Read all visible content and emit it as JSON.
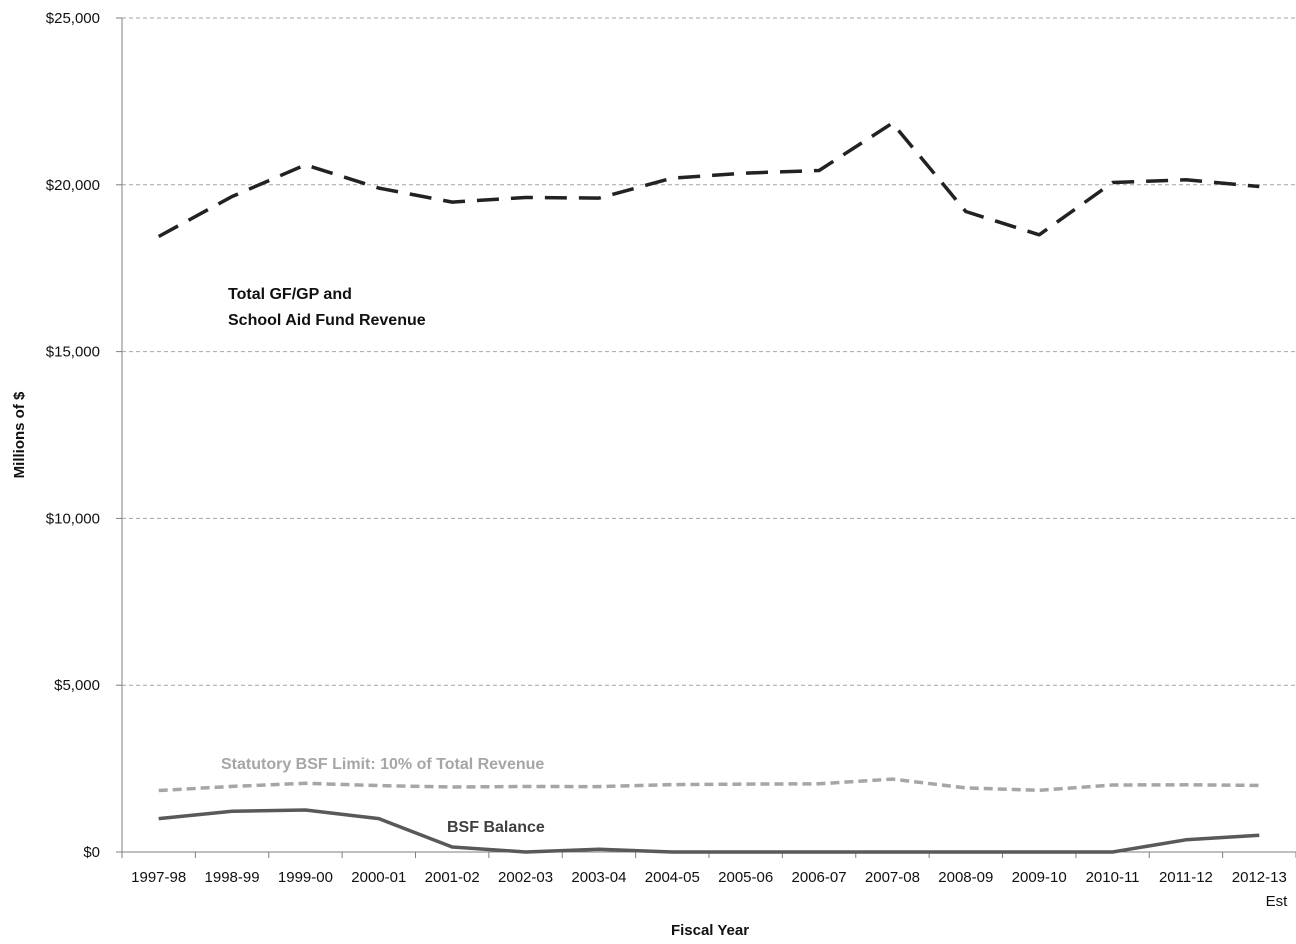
{
  "chart_data": {
    "type": "line",
    "title": "",
    "xlabel": "Fiscal Year",
    "ylabel": "Millions of $",
    "ylim": [
      0,
      25000
    ],
    "grid": true,
    "legend": "none",
    "y_ticks": [
      0,
      5000,
      10000,
      15000,
      20000,
      25000
    ],
    "y_tick_labels": [
      "$0",
      "$5,000",
      "$10,000",
      "$15,000",
      "$20,000",
      "$25,000"
    ],
    "categories": [
      "1997-98",
      "1998-99",
      "1999-00",
      "2000-01",
      "2001-02",
      "2002-03",
      "2003-04",
      "2004-05",
      "2005-06",
      "2006-07",
      "2007-08",
      "2008-09",
      "2009-10",
      "2010-11",
      "2011-12",
      "2012-13"
    ],
    "category_sublabels": [
      "",
      "",
      "",
      "",
      "",
      "",
      "",
      "",
      "",
      "",
      "",
      "",
      "",
      "",
      "",
      "Est"
    ],
    "series": [
      {
        "key": "revenue",
        "label_lines": [
          "Total GF/GP and",
          "School Aid Fund Revenue"
        ],
        "color": "#222222",
        "style": "long-dash",
        "values": [
          18450,
          19650,
          20600,
          19900,
          19480,
          19620,
          19600,
          20200,
          20350,
          20430,
          21850,
          19200,
          18500,
          20070,
          20150,
          19950
        ]
      },
      {
        "key": "limit",
        "label_lines": [
          "Statutory BSF Limit: 10% of Total Revenue"
        ],
        "color": "#a6a6a6",
        "style": "short-dash",
        "values": [
          1845,
          1965,
          2060,
          1990,
          1948,
          1962,
          1960,
          2020,
          2035,
          2043,
          2185,
          1920,
          1850,
          2007,
          2015,
          1995
        ]
      },
      {
        "key": "bsf",
        "label_lines": [
          "BSF Balance"
        ],
        "color": "#595959",
        "style": "solid",
        "values": [
          1000,
          1220,
          1260,
          1000,
          150,
          0,
          80,
          0,
          0,
          0,
          0,
          0,
          0,
          0,
          365,
          505
        ]
      }
    ]
  }
}
